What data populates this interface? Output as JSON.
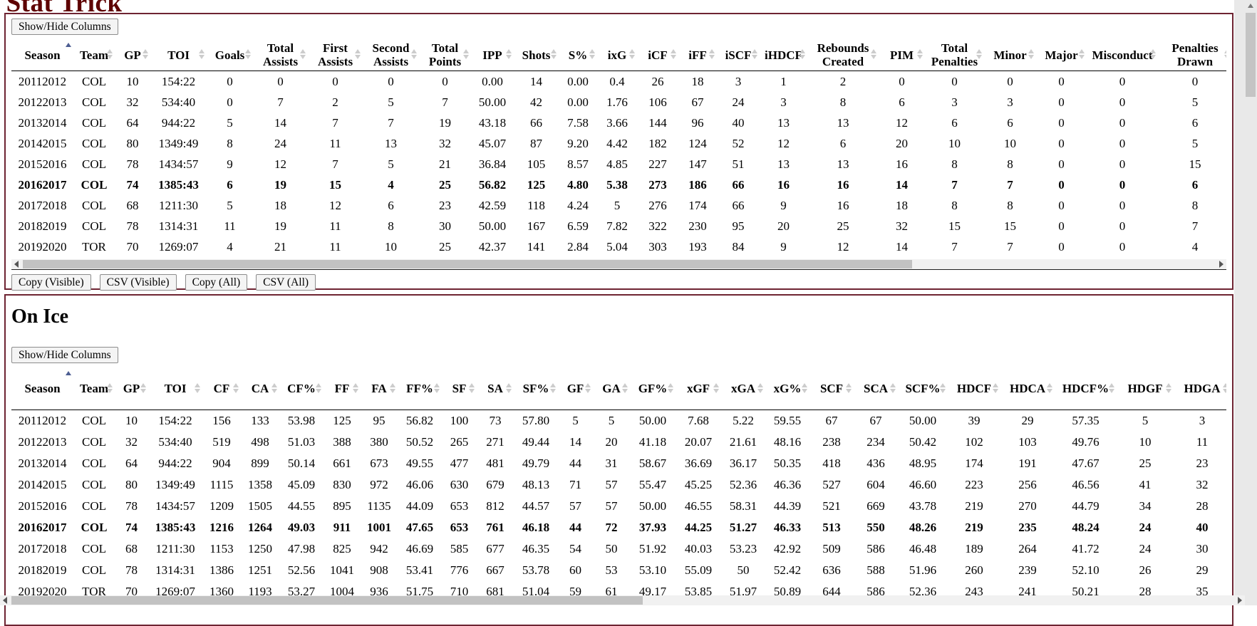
{
  "page": {
    "site_title": "Natural Stat Trick",
    "show_hide_columns_label": "Show/Hide Columns",
    "on_ice_heading": "On Ice",
    "export_buttons": [
      "Copy (Visible)",
      "CSV (Visible)",
      "Copy (All)",
      "CSV (All)"
    ],
    "colors": {
      "accent_maroon": "#6e2432",
      "title_maroon": "#5e0000",
      "sorted_arrow_blue": "#4d5e92",
      "sort_arrow_gray": "#cccccc"
    }
  },
  "tables": [
    {
      "sorted_column": "Season",
      "sorted_ascending": true,
      "bold_season": "20162017",
      "headers": [
        "Season",
        "Team",
        "GP",
        "TOI",
        "Goals",
        "Total Assists",
        "First Assists",
        "Second Assists",
        "Total Points",
        "IPP",
        "Shots",
        "S%",
        "ixG",
        "iCF",
        "iFF",
        "iSCF",
        "iHDCF",
        "Rebounds Created",
        "PIM",
        "Total Penalties",
        "Minor",
        "Major",
        "Misconduct",
        "Penalties Drawn"
      ],
      "rows": [
        [
          "20112012",
          "COL",
          "10",
          "154:22",
          "0",
          "0",
          "0",
          "0",
          "0",
          "0.00",
          "14",
          "0.00",
          "0.4",
          "26",
          "18",
          "3",
          "1",
          "2",
          "0",
          "0",
          "0",
          "0",
          "0",
          "0"
        ],
        [
          "20122013",
          "COL",
          "32",
          "534:40",
          "0",
          "7",
          "2",
          "5",
          "7",
          "50.00",
          "42",
          "0.00",
          "1.76",
          "106",
          "67",
          "24",
          "3",
          "8",
          "6",
          "3",
          "3",
          "0",
          "0",
          "5"
        ],
        [
          "20132014",
          "COL",
          "64",
          "944:22",
          "5",
          "14",
          "7",
          "7",
          "19",
          "43.18",
          "66",
          "7.58",
          "3.66",
          "144",
          "96",
          "40",
          "13",
          "13",
          "12",
          "6",
          "6",
          "0",
          "0",
          "6"
        ],
        [
          "20142015",
          "COL",
          "80",
          "1349:49",
          "8",
          "24",
          "11",
          "13",
          "32",
          "45.07",
          "87",
          "9.20",
          "4.42",
          "182",
          "124",
          "52",
          "12",
          "6",
          "20",
          "10",
          "10",
          "0",
          "0",
          "5"
        ],
        [
          "20152016",
          "COL",
          "78",
          "1434:57",
          "9",
          "12",
          "7",
          "5",
          "21",
          "36.84",
          "105",
          "8.57",
          "4.85",
          "227",
          "147",
          "51",
          "13",
          "13",
          "16",
          "8",
          "8",
          "0",
          "0",
          "15"
        ],
        [
          "20162017",
          "COL",
          "74",
          "1385:43",
          "6",
          "19",
          "15",
          "4",
          "25",
          "56.82",
          "125",
          "4.80",
          "5.38",
          "273",
          "186",
          "66",
          "16",
          "16",
          "14",
          "7",
          "7",
          "0",
          "0",
          "6"
        ],
        [
          "20172018",
          "COL",
          "68",
          "1211:30",
          "5",
          "18",
          "12",
          "6",
          "23",
          "42.59",
          "118",
          "4.24",
          "5",
          "276",
          "174",
          "66",
          "9",
          "16",
          "18",
          "8",
          "8",
          "0",
          "0",
          "8"
        ],
        [
          "20182019",
          "COL",
          "78",
          "1314:31",
          "11",
          "19",
          "11",
          "8",
          "30",
          "50.00",
          "167",
          "6.59",
          "7.82",
          "322",
          "230",
          "95",
          "20",
          "25",
          "32",
          "15",
          "15",
          "0",
          "0",
          "7"
        ],
        [
          "20192020",
          "TOR",
          "70",
          "1269:07",
          "4",
          "21",
          "11",
          "10",
          "25",
          "42.37",
          "141",
          "2.84",
          "5.04",
          "303",
          "193",
          "84",
          "9",
          "12",
          "14",
          "7",
          "7",
          "0",
          "0",
          "4"
        ]
      ]
    },
    {
      "sorted_column": "Season",
      "sorted_ascending": true,
      "bold_season": "20162017",
      "headers": [
        "Season",
        "Team",
        "GP",
        "TOI",
        "CF",
        "CA",
        "CF%",
        "FF",
        "FA",
        "FF%",
        "SF",
        "SA",
        "SF%",
        "GF",
        "GA",
        "GF%",
        "xGF",
        "xGA",
        "xG%",
        "SCF",
        "SCA",
        "SCF%",
        "HDCF",
        "HDCA",
        "HDCF%",
        "HDGF",
        "HDGA"
      ],
      "rows": [
        [
          "20112012",
          "COL",
          "10",
          "154:22",
          "156",
          "133",
          "53.98",
          "125",
          "95",
          "56.82",
          "100",
          "73",
          "57.80",
          "5",
          "5",
          "50.00",
          "7.68",
          "5.22",
          "59.55",
          "67",
          "67",
          "50.00",
          "39",
          "29",
          "57.35",
          "5",
          "3"
        ],
        [
          "20122013",
          "COL",
          "32",
          "534:40",
          "519",
          "498",
          "51.03",
          "388",
          "380",
          "50.52",
          "265",
          "271",
          "49.44",
          "14",
          "20",
          "41.18",
          "20.07",
          "21.61",
          "48.16",
          "238",
          "234",
          "50.42",
          "102",
          "103",
          "49.76",
          "10",
          "11"
        ],
        [
          "20132014",
          "COL",
          "64",
          "944:22",
          "904",
          "899",
          "50.14",
          "661",
          "673",
          "49.55",
          "477",
          "481",
          "49.79",
          "44",
          "31",
          "58.67",
          "36.69",
          "36.17",
          "50.35",
          "418",
          "436",
          "48.95",
          "174",
          "191",
          "47.67",
          "25",
          "23"
        ],
        [
          "20142015",
          "COL",
          "80",
          "1349:49",
          "1115",
          "1358",
          "45.09",
          "830",
          "972",
          "46.06",
          "630",
          "679",
          "48.13",
          "71",
          "57",
          "55.47",
          "45.25",
          "52.36",
          "46.36",
          "527",
          "604",
          "46.60",
          "223",
          "256",
          "46.56",
          "41",
          "32"
        ],
        [
          "20152016",
          "COL",
          "78",
          "1434:57",
          "1209",
          "1505",
          "44.55",
          "895",
          "1135",
          "44.09",
          "653",
          "812",
          "44.57",
          "57",
          "57",
          "50.00",
          "46.55",
          "58.31",
          "44.39",
          "521",
          "669",
          "43.78",
          "219",
          "270",
          "44.79",
          "34",
          "28"
        ],
        [
          "20162017",
          "COL",
          "74",
          "1385:43",
          "1216",
          "1264",
          "49.03",
          "911",
          "1001",
          "47.65",
          "653",
          "761",
          "46.18",
          "44",
          "72",
          "37.93",
          "44.25",
          "51.27",
          "46.33",
          "513",
          "550",
          "48.26",
          "219",
          "235",
          "48.24",
          "24",
          "40"
        ],
        [
          "20172018",
          "COL",
          "68",
          "1211:30",
          "1153",
          "1250",
          "47.98",
          "825",
          "942",
          "46.69",
          "585",
          "677",
          "46.35",
          "54",
          "50",
          "51.92",
          "40.03",
          "53.23",
          "42.92",
          "509",
          "586",
          "46.48",
          "189",
          "264",
          "41.72",
          "24",
          "30"
        ],
        [
          "20182019",
          "COL",
          "78",
          "1314:31",
          "1386",
          "1251",
          "52.56",
          "1041",
          "908",
          "53.41",
          "776",
          "667",
          "53.78",
          "60",
          "53",
          "53.10",
          "55.09",
          "50",
          "52.42",
          "636",
          "588",
          "51.96",
          "260",
          "239",
          "52.10",
          "26",
          "29"
        ],
        [
          "20192020",
          "TOR",
          "70",
          "1269:07",
          "1360",
          "1193",
          "53.27",
          "1004",
          "936",
          "51.75",
          "710",
          "681",
          "51.04",
          "59",
          "61",
          "49.17",
          "53.85",
          "51.97",
          "50.89",
          "644",
          "586",
          "52.36",
          "243",
          "241",
          "50.21",
          "28",
          "35"
        ]
      ]
    }
  ]
}
